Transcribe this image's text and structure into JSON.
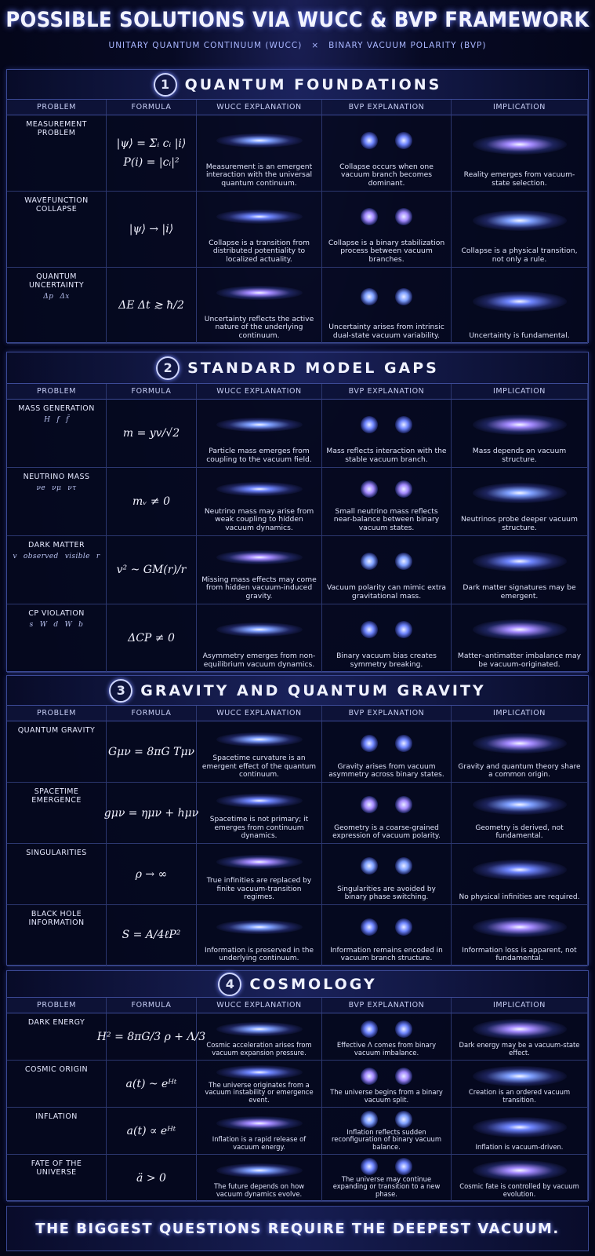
{
  "header": {
    "title": "POSSIBLE SOLUTIONS VIA WUCC & BVP FRAMEWORK",
    "subtitle_left": "UNITARY QUANTUM CONTINUUM (WUCC)",
    "subtitle_sep": "×",
    "subtitle_right": "BINARY VACUUM POLARITY (BVP)"
  },
  "columns": [
    "PROBLEM",
    "FORMULA",
    "WUCC EXPLANATION",
    "BVP EXPLANATION",
    "IMPLICATION"
  ],
  "sections": [
    {
      "number": "1",
      "title": "QUANTUM FOUNDATIONS",
      "rows": [
        {
          "problem": "MEASUREMENT PROBLEM",
          "formula": [
            "|ψ⟩ = Σᵢ cᵢ |i⟩",
            "P(i) = |cᵢ|²"
          ],
          "wucc": "Measurement is an emergent interaction with the universal quantum continuum.",
          "bvp": "Collapse occurs when one vacuum branch becomes dominant.",
          "implication": "Reality emerges from vacuum-state selection."
        },
        {
          "problem": "WAVEFUNCTION COLLAPSE",
          "formula": [
            "|ψ⟩ → |i⟩"
          ],
          "wucc": "Collapse is a transition from distributed potentiality to localized actuality.",
          "bvp": "Collapse is a binary stabilization process between vacuum branches.",
          "implication": "Collapse is a physical transition, not only a rule."
        },
        {
          "problem": "QUANTUM UNCERTAINTY",
          "labels": [
            "Δp",
            "Δx"
          ],
          "formula": [
            "ΔE Δt ≳ ħ/2"
          ],
          "wucc": "Uncertainty reflects the active nature of the underlying continuum.",
          "bvp": "Uncertainty arises from intrinsic dual-state vacuum variability.",
          "implication": "Uncertainty is fundamental."
        }
      ]
    },
    {
      "number": "2",
      "title": "STANDARD MODEL GAPS",
      "rows": [
        {
          "problem": "MASS GENERATION",
          "labels": [
            "H",
            "f",
            "f̄"
          ],
          "formula": [
            "m = yv/√2"
          ],
          "wucc": "Particle mass emerges from coupling to the vacuum field.",
          "bvp": "Mass reflects interaction with the stable vacuum branch.",
          "implication": "Mass depends on vacuum structure."
        },
        {
          "problem": "NEUTRINO MASS",
          "labels": [
            "νe",
            "νμ",
            "ντ"
          ],
          "formula": [
            "mᵥ ≠ 0"
          ],
          "wucc": "Neutrino mass may arise from weak coupling to hidden vacuum dynamics.",
          "bvp": "Small neutrino mass reflects near-balance between binary vacuum states.",
          "implication": "Neutrinos probe deeper vacuum structure."
        },
        {
          "problem": "DARK MATTER",
          "labels": [
            "v",
            "observed",
            "visible",
            "r"
          ],
          "formula": [
            "v² ~ GM(r)/r"
          ],
          "wucc": "Missing mass effects may come from hidden vacuum-induced gravity.",
          "bvp": "Vacuum polarity can mimic extra gravitational mass.",
          "implication": "Dark matter signatures may be emergent."
        },
        {
          "problem": "CP VIOLATION",
          "labels": [
            "s",
            "W",
            "d",
            "W",
            "b"
          ],
          "formula": [
            "ΔCP ≠ 0"
          ],
          "wucc": "Asymmetry emerges from non-equilibrium vacuum dynamics.",
          "bvp": "Binary vacuum bias creates symmetry breaking.",
          "implication": "Matter–antimatter imbalance may be vacuum-originated."
        }
      ]
    },
    {
      "number": "3",
      "title": "GRAVITY AND QUANTUM GRAVITY",
      "rows": [
        {
          "problem": "QUANTUM GRAVITY",
          "formula": [
            "Gμν = 8πG Tμν"
          ],
          "wucc": "Spacetime curvature is an emergent effect of the quantum continuum.",
          "bvp": "Gravity arises from vacuum asymmetry across binary states.",
          "implication": "Gravity and quantum theory share a common origin."
        },
        {
          "problem": "SPACETIME EMERGENCE",
          "formula": [
            "gμν = ημν + hμν"
          ],
          "wucc": "Spacetime is not primary; it emerges from continuum dynamics.",
          "bvp": "Geometry is a coarse-grained expression of vacuum polarity.",
          "implication": "Geometry is derived, not fundamental."
        },
        {
          "problem": "SINGULARITIES",
          "formula": [
            "ρ → ∞"
          ],
          "wucc": "True infinities are replaced by finite vacuum-transition regimes.",
          "bvp": "Singularities are avoided by binary phase switching.",
          "implication": "No physical infinities are required."
        },
        {
          "problem": "BLACK HOLE INFORMATION",
          "formula": [
            "S = A/4ℓP²"
          ],
          "wucc": "Information is preserved in the underlying continuum.",
          "bvp": "Information remains encoded in vacuum branch structure.",
          "implication": "Information loss is apparent, not fundamental."
        }
      ]
    },
    {
      "number": "4",
      "title": "COSMOLOGY",
      "rows": [
        {
          "problem": "DARK ENERGY",
          "formula": [
            "H² = 8πG/3 ρ + Λ/3"
          ],
          "wucc": "Cosmic acceleration arises from vacuum expansion pressure.",
          "bvp": "Effective Λ comes from binary vacuum imbalance.",
          "implication": "Dark energy may be a vacuum-state effect."
        },
        {
          "problem": "COSMIC ORIGIN",
          "formula": [
            "a(t) ~ eᴴᵗ"
          ],
          "wucc": "The universe originates from a vacuum instability or emergence event.",
          "bvp": "The universe begins from a binary vacuum split.",
          "implication": "Creation is an ordered vacuum transition."
        },
        {
          "problem": "INFLATION",
          "formula": [
            "a(t) ∝ eᴴᵗ"
          ],
          "wucc": "Inflation is a rapid release of vacuum energy.",
          "bvp": "Inflation reflects sudden reconfiguration of binary vacuum balance.",
          "implication": "Inflation is vacuum-driven."
        },
        {
          "problem": "FATE OF THE UNIVERSE",
          "formula": [
            "ä > 0"
          ],
          "wucc": "The future depends on how vacuum dynamics evolve.",
          "bvp": "The universe may continue expanding or transition to a new phase.",
          "implication": "Cosmic fate is controlled by vacuum evolution."
        }
      ]
    }
  ],
  "footer": "THE BIGGEST QUESTIONS REQUIRE THE DEEPEST VACUUM."
}
